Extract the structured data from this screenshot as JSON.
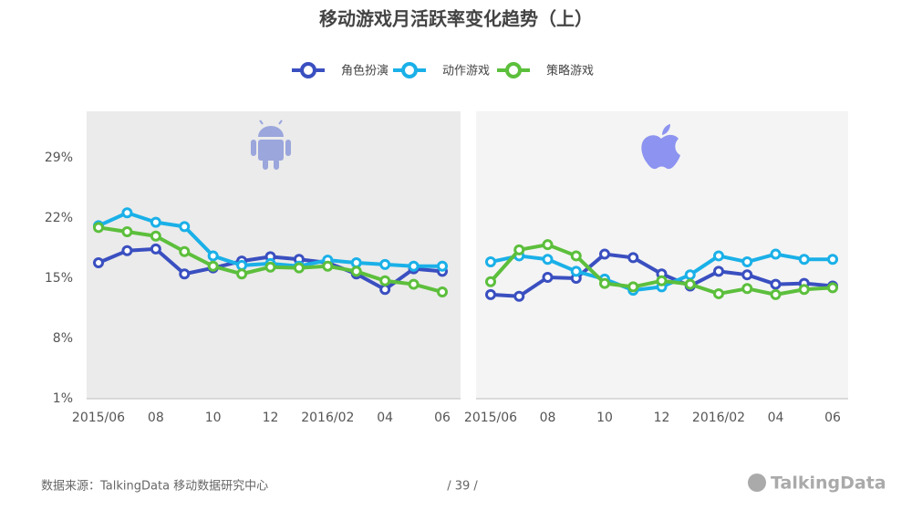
{
  "page": {
    "title": "移动游戏月活跃率变化趋势（上）",
    "source": "数据来源：TalkingData  移动数据研究中心",
    "page_number": "/  39  /",
    "logo": "TalkingData"
  },
  "chart_data": [
    {
      "type": "line",
      "categories": [
        "2015/06",
        null,
        "08",
        null,
        "10",
        null,
        "12",
        null,
        "2016/02",
        null,
        "04",
        null,
        "06"
      ],
      "ylim": [
        1,
        34.4
      ],
      "yticks": [
        {
          "value": 1,
          "label": "1%"
        },
        {
          "value": 8,
          "label": "8%"
        },
        {
          "value": 15,
          "label": "15%"
        },
        {
          "value": 22,
          "label": "22%"
        },
        {
          "value": 29,
          "label": "29%"
        }
      ],
      "series": [
        {
          "name": "角色扮演",
          "color": "#3a4fc0",
          "values": [
            16.8,
            18.2,
            18.4,
            15.5,
            16.2,
            17.0,
            17.5,
            17.2,
            16.8,
            15.5,
            13.7,
            16.1,
            15.8
          ]
        },
        {
          "name": "动作游戏",
          "color": "#1ab0e8",
          "values": [
            21.1,
            22.6,
            21.5,
            21.0,
            17.6,
            16.5,
            16.7,
            16.4,
            17.1,
            16.8,
            16.6,
            16.4,
            16.4
          ]
        },
        {
          "name": "策略游戏",
          "color": "#5cbf3c",
          "values": [
            20.9,
            20.4,
            19.9,
            18.1,
            16.4,
            15.5,
            16.3,
            16.2,
            16.4,
            15.8,
            14.7,
            14.3,
            13.4
          ]
        }
      ]
    },
    {
      "type": "line",
      "categories": [
        "2015/06",
        null,
        "08",
        null,
        "10",
        null,
        "12",
        null,
        "2016/02",
        null,
        "04",
        null,
        "06"
      ],
      "ylim": [
        1,
        34.4
      ],
      "series": [
        {
          "name": "角色扮演",
          "color": "#3a4fc0",
          "values": [
            13.1,
            12.9,
            15.1,
            15.0,
            17.8,
            17.4,
            15.5,
            14.1,
            15.8,
            15.4,
            14.3,
            14.4,
            14.1
          ]
        },
        {
          "name": "动作游戏",
          "color": "#1ab0e8",
          "values": [
            16.9,
            17.6,
            17.2,
            15.8,
            14.9,
            13.6,
            14.0,
            15.4,
            17.6,
            16.9,
            17.8,
            17.2,
            17.2
          ]
        },
        {
          "name": "策略游戏",
          "color": "#5cbf3c",
          "values": [
            14.6,
            18.3,
            18.9,
            17.6,
            14.4,
            14.0,
            14.7,
            14.3,
            13.2,
            13.8,
            13.1,
            13.7,
            13.9
          ]
        }
      ]
    }
  ]
}
